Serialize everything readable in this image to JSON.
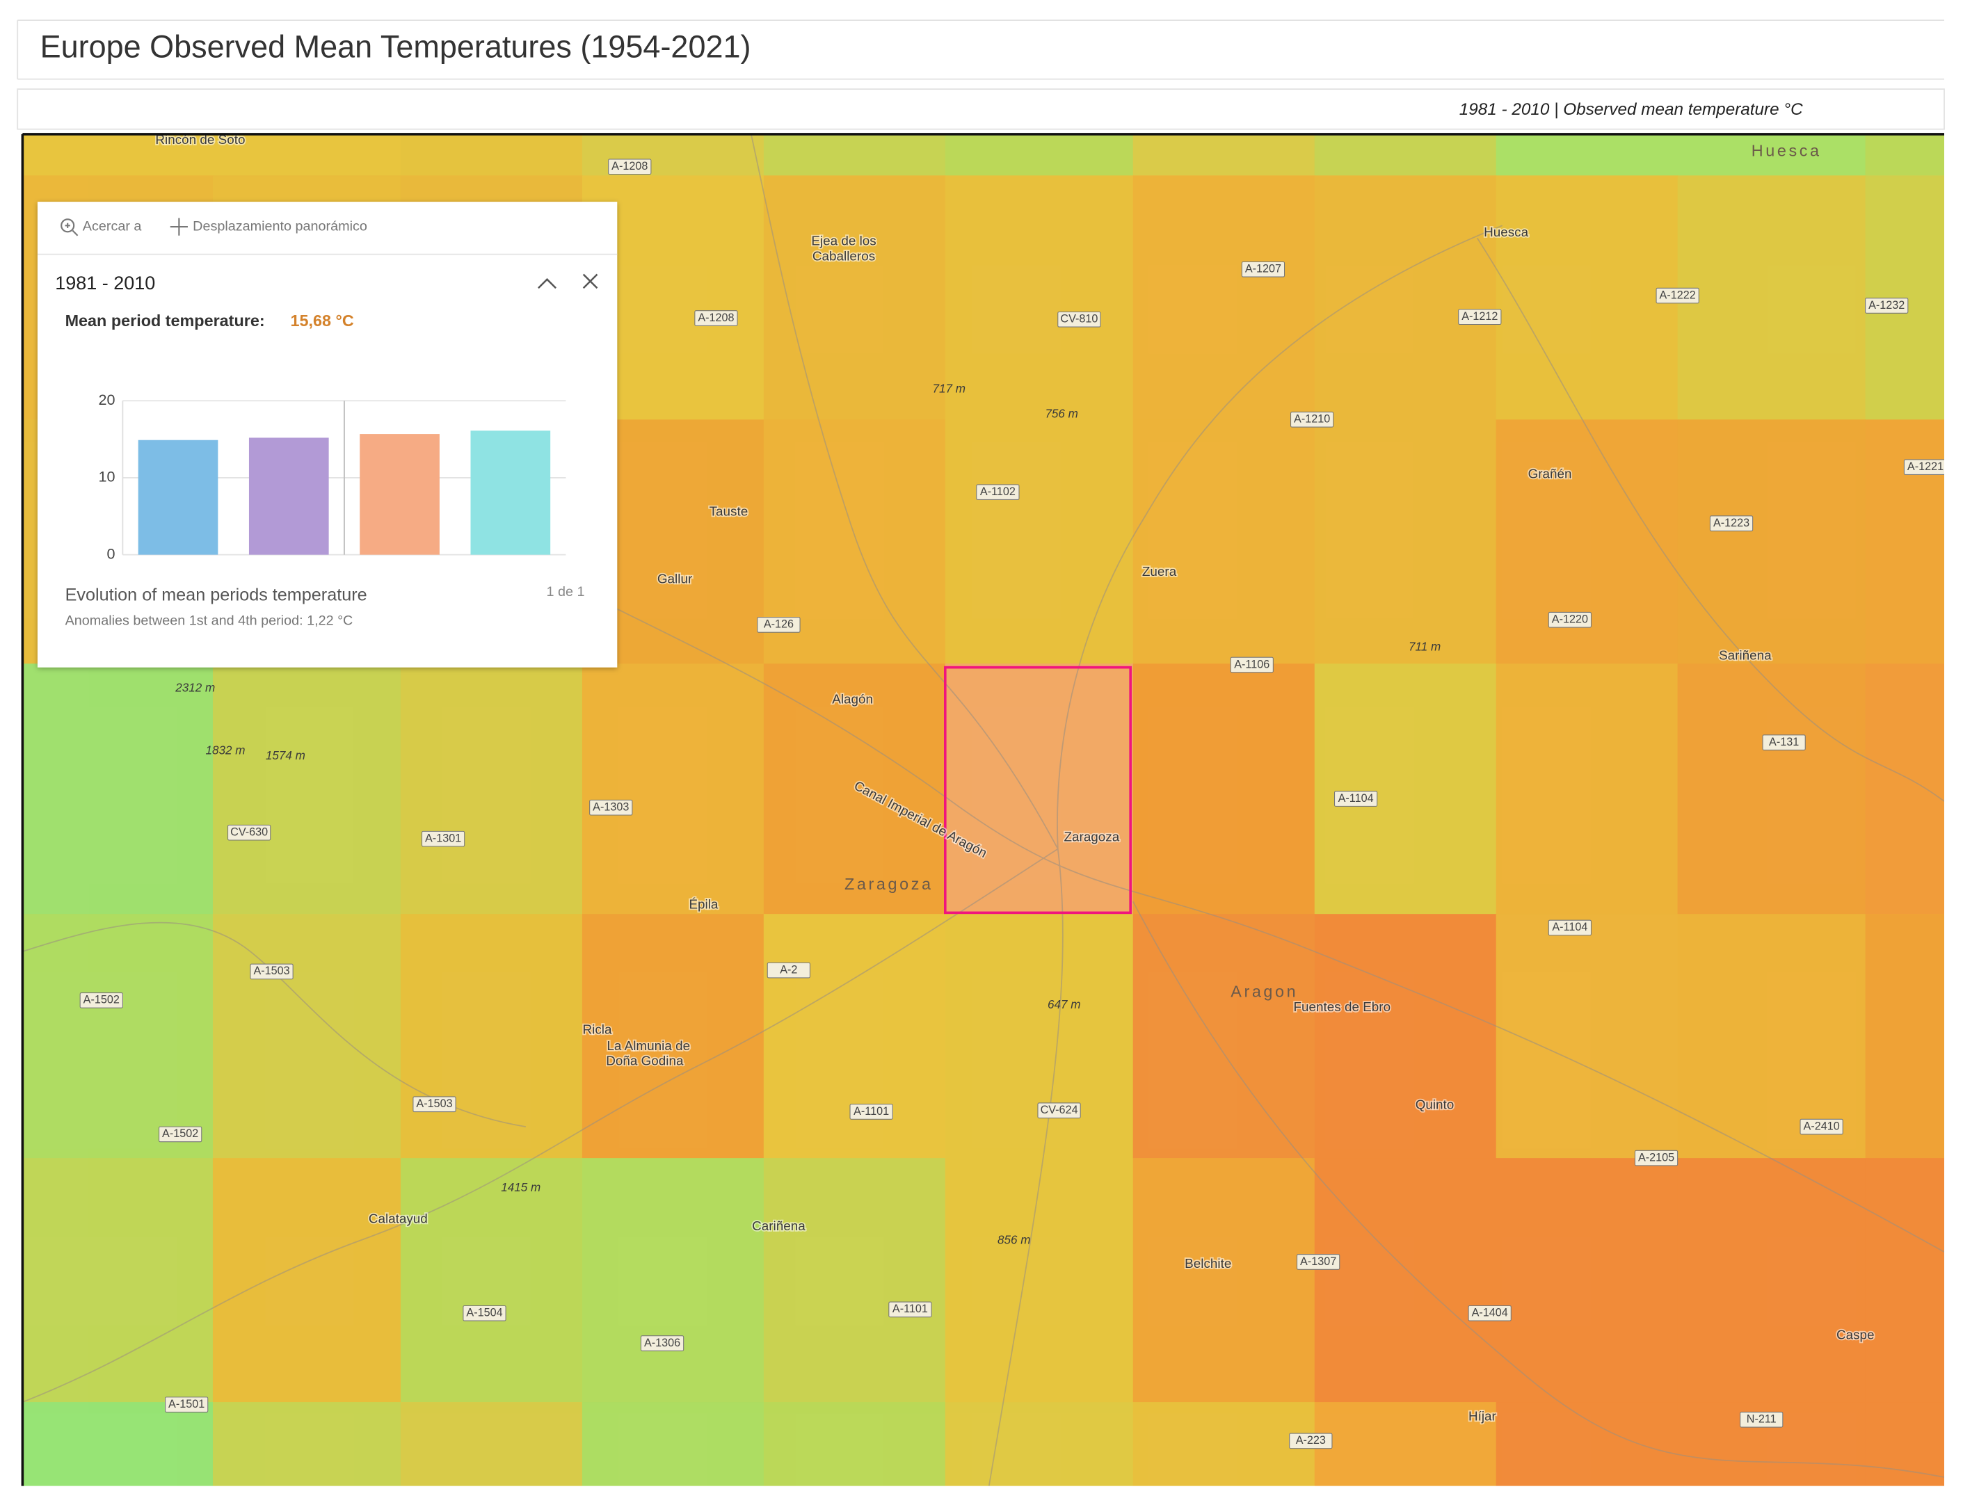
{
  "header": {
    "title": "Europe Observed Mean Temperatures (1954-2021)"
  },
  "layer_info": "1981 - 2010 | Observed mean temperature °C",
  "popup": {
    "tools": [
      "Acercar a",
      "Desplazamiento panorámico"
    ],
    "title": "1981 - 2010",
    "field_label": "Mean period temperature:",
    "field_value": "15,68 °C",
    "chart_title": "Evolution of mean periods temperature",
    "chart_subtitle": "Anomalies between 1st and 4th period: 1,22 °C",
    "pager": "1 de 1"
  },
  "chart_data": {
    "type": "bar",
    "categories": [
      null,
      null,
      null,
      null
    ],
    "values": [
      14.9,
      15.2,
      15.68,
      16.12
    ],
    "colors": [
      "#7dbde6",
      "#b29ad6",
      "#f6ab84",
      "#8fe3e3"
    ],
    "ylim": [
      0,
      20
    ],
    "yticks": [
      0,
      10,
      20
    ],
    "grid": true
  },
  "map": {
    "regions": [
      "Huesca",
      "Zaragoza",
      "Aragon"
    ],
    "places": [
      "Rincón de Soto",
      "Ejea de los",
      "Caballeros",
      "Huesca",
      "Tauste",
      "Gallur",
      "Zuera",
      "Grañén",
      "Sariñena",
      "Alagón",
      "Zaragoza",
      "Épila",
      "Fuentes de Ebro",
      "Ricla",
      "La Almunia de",
      "Doña Godina",
      "Quinto",
      "Calatayud",
      "Cariñena",
      "Belchite",
      "Caspe",
      "Híjar",
      "Canal Imperial de Aragón"
    ],
    "elevations": [
      "717 m",
      "756 m",
      "711 m",
      "2312 m",
      "1832 m",
      "1574 m",
      "647 m",
      "1415 m",
      "856 m"
    ],
    "roads": [
      "A-1208",
      "A-1208",
      "A-1207",
      "CV-810",
      "A-1212",
      "A-1222",
      "A-1232",
      "A-1210",
      "A-1102",
      "A-1223",
      "A-1220",
      "A-126",
      "A-1106",
      "A-131",
      "A-1104",
      "A-1104",
      "A-1303",
      "CV-630",
      "A-1301",
      "A-1503",
      "A-1503",
      "A-1502",
      "A-1502",
      "A-2",
      "A-1101",
      "A-1101",
      "CV-624",
      "A-2410",
      "A-2105",
      "A-1307",
      "A-1404",
      "A-1504",
      "A-1306",
      "A-1501",
      "A-223",
      "N-211",
      "A-1221"
    ]
  }
}
